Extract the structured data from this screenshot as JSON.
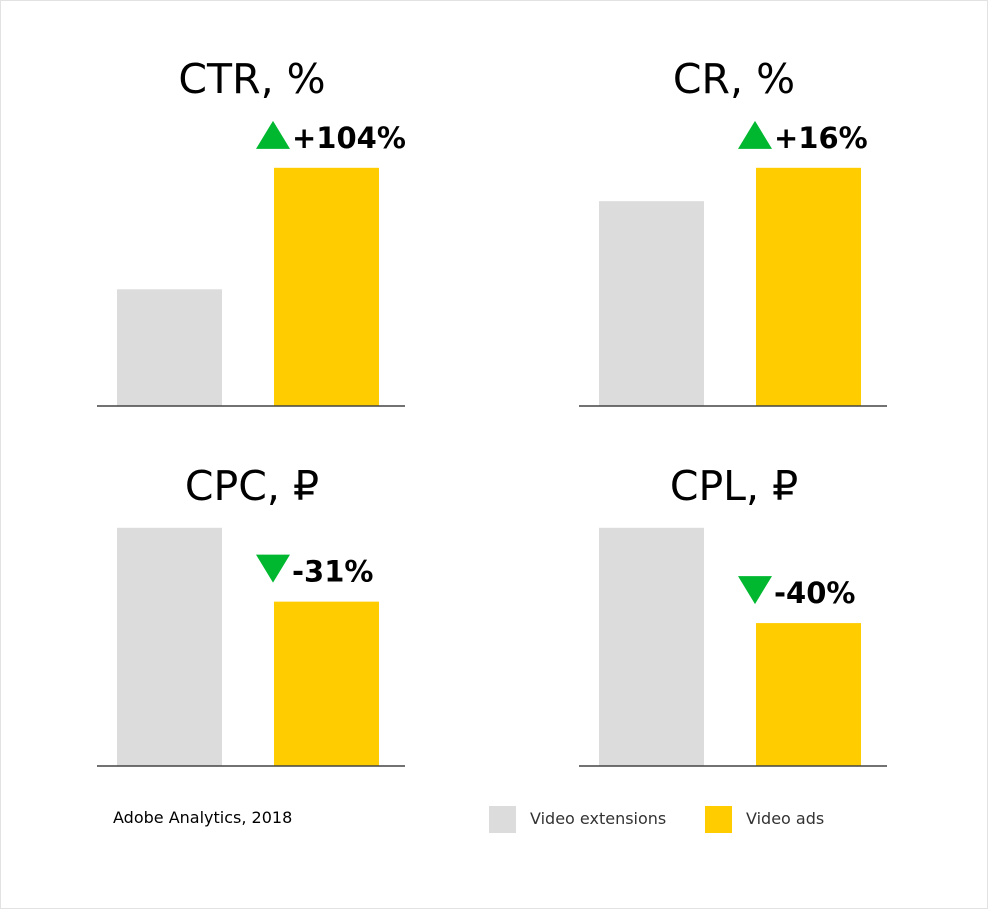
{
  "colors": {
    "video_extensions": "#dcdcdc",
    "video_ads": "#ffcc00",
    "arrow": "#00b830",
    "axis": "#444444"
  },
  "legend": [
    {
      "label": "Video extensions",
      "color": "#dcdcdc"
    },
    {
      "label": "Video ads",
      "color": "#ffcc00"
    }
  ],
  "source": "Adobe Analytics, 2018",
  "chart_data": [
    {
      "type": "bar",
      "title": "CTR, %",
      "categories": [
        "Video extensions",
        "Video ads"
      ],
      "values": [
        49,
        100
      ],
      "change": "+104%",
      "direction": "up",
      "ylim": [
        0,
        110
      ]
    },
    {
      "type": "bar",
      "title": "CR, %",
      "categories": [
        "Video extensions",
        "Video ads"
      ],
      "values": [
        86,
        100
      ],
      "change": "+16%",
      "direction": "up",
      "ylim": [
        0,
        110
      ]
    },
    {
      "type": "bar",
      "title": "CPC, ₽",
      "categories": [
        "Video extensions",
        "Video ads"
      ],
      "values": [
        100,
        69
      ],
      "change": "-31%",
      "direction": "down",
      "ylim": [
        0,
        110
      ]
    },
    {
      "type": "bar",
      "title": "CPL, ₽",
      "categories": [
        "Video extensions",
        "Video ads"
      ],
      "values": [
        100,
        60
      ],
      "change": "-40%",
      "direction": "down",
      "ylim": [
        0,
        110
      ]
    }
  ]
}
